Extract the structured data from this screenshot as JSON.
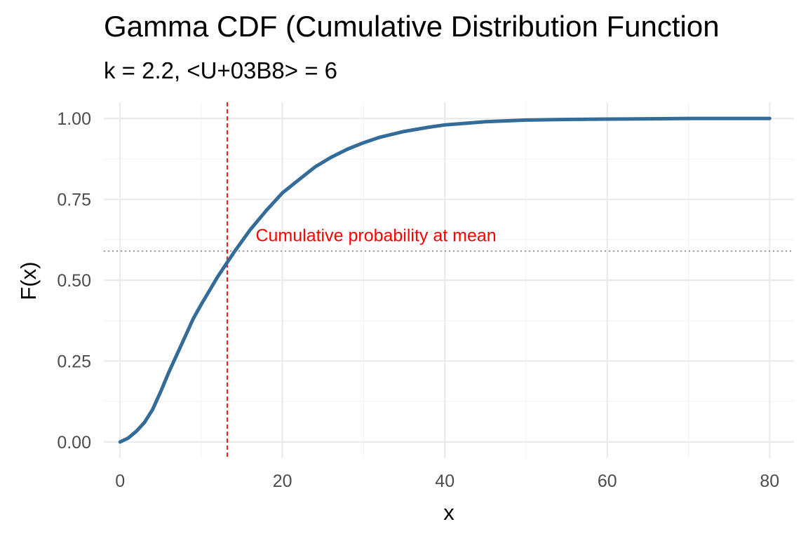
{
  "chart_data": {
    "type": "line",
    "title": "Gamma CDF (Cumulative Distribution Function",
    "subtitle": "k = 2.2,  <U+03B8> = 6",
    "xlabel": "x",
    "ylabel": "F(x)",
    "xlim": [
      -2,
      83
    ],
    "ylim": [
      -0.05,
      1.05
    ],
    "x_ticks": [
      0,
      20,
      40,
      60,
      80
    ],
    "x_tick_labels": [
      "0",
      "20",
      "40",
      "60",
      "80"
    ],
    "y_ticks": [
      0,
      0.25,
      0.5,
      0.75,
      1.0
    ],
    "y_tick_labels": [
      "0.00",
      "0.25",
      "0.50",
      "0.75",
      "1.00"
    ],
    "grid": true,
    "series": [
      {
        "color": "#336b99",
        "x": [
          0,
          1,
          2,
          3,
          4,
          5,
          6,
          7,
          8,
          9,
          10,
          12,
          14,
          16,
          18,
          20,
          22,
          24,
          26,
          28,
          30,
          32,
          35,
          38,
          40,
          45,
          50,
          55,
          60,
          65,
          70,
          75,
          80
        ],
        "y": [
          0,
          0.012,
          0.033,
          0.06,
          0.1,
          0.155,
          0.215,
          0.27,
          0.325,
          0.38,
          0.425,
          0.51,
          0.585,
          0.655,
          0.715,
          0.77,
          0.81,
          0.85,
          0.88,
          0.905,
          0.925,
          0.942,
          0.96,
          0.973,
          0.98,
          0.99,
          0.995,
          0.997,
          0.998,
          0.999,
          1.0,
          1.0,
          1.0
        ]
      }
    ],
    "reference_lines": {
      "vertical_x": 13.2,
      "vertical_color": "#ff0000",
      "horizontal_y": 0.59,
      "horizontal_color": "#808080"
    },
    "annotation": {
      "text": "Cumulative probability at mean",
      "x": 16.7,
      "y": 0.62,
      "color": "#ff0000"
    }
  }
}
